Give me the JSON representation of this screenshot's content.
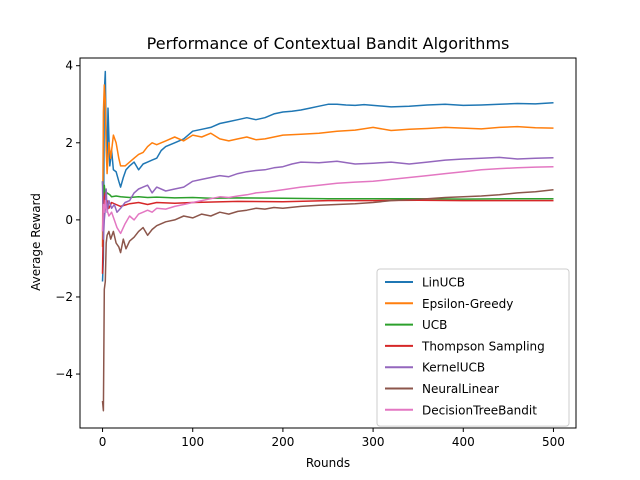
{
  "chart_data": {
    "type": "line",
    "title": "Performance of Contextual Bandit Algorithms",
    "xlabel": "Rounds",
    "ylabel": "Average Reward",
    "xlim": [
      -25,
      525
    ],
    "ylim": [
      -5.4,
      4.2
    ],
    "xticks": [
      0,
      100,
      200,
      300,
      400,
      500
    ],
    "xtick_labels": [
      "0",
      "100",
      "200",
      "300",
      "400",
      "500"
    ],
    "yticks": [
      -4,
      -2,
      0,
      2,
      4
    ],
    "ytick_labels": [
      "−4",
      "−2",
      "0",
      "2",
      "4"
    ],
    "grid": false,
    "legend_position": "lower right",
    "series": [
      {
        "name": "LinUCB",
        "color": "#1f77b4",
        "x": [
          0,
          1,
          2,
          3,
          4,
          5,
          6,
          8,
          10,
          12,
          15,
          18,
          20,
          23,
          26,
          30,
          35,
          40,
          45,
          50,
          55,
          60,
          65,
          70,
          80,
          90,
          100,
          110,
          120,
          130,
          140,
          150,
          160,
          170,
          180,
          190,
          200,
          210,
          220,
          230,
          240,
          250,
          260,
          270,
          280,
          290,
          300,
          320,
          340,
          360,
          380,
          400,
          420,
          440,
          460,
          480,
          500
        ],
        "y": [
          -1.6,
          -1.0,
          3.3,
          3.85,
          2.1,
          1.5,
          2.9,
          1.4,
          1.8,
          1.3,
          1.25,
          1.0,
          0.85,
          1.1,
          1.3,
          1.4,
          1.5,
          1.3,
          1.45,
          1.5,
          1.55,
          1.6,
          1.8,
          1.9,
          2.0,
          2.1,
          2.3,
          2.35,
          2.4,
          2.5,
          2.55,
          2.6,
          2.65,
          2.6,
          2.65,
          2.75,
          2.8,
          2.82,
          2.85,
          2.9,
          2.95,
          3.0,
          3.0,
          2.98,
          2.97,
          2.99,
          2.97,
          2.93,
          2.95,
          2.98,
          3.0,
          2.97,
          2.98,
          3.0,
          3.02,
          3.01,
          3.04
        ]
      },
      {
        "name": "Epsilon-Greedy",
        "color": "#ff7f0e",
        "x": [
          0,
          1,
          2,
          3,
          4,
          5,
          7,
          9,
          12,
          15,
          18,
          20,
          25,
          30,
          35,
          40,
          45,
          50,
          55,
          60,
          70,
          80,
          90,
          100,
          110,
          120,
          130,
          140,
          150,
          160,
          170,
          180,
          190,
          200,
          220,
          240,
          260,
          280,
          300,
          320,
          340,
          360,
          380,
          400,
          420,
          440,
          460,
          480,
          500
        ],
        "y": [
          -0.7,
          2.8,
          3.5,
          3.1,
          1.8,
          1.2,
          2.0,
          1.6,
          2.2,
          2.0,
          1.6,
          1.4,
          1.4,
          1.5,
          1.6,
          1.7,
          1.75,
          1.9,
          2.0,
          1.95,
          2.05,
          2.15,
          2.05,
          2.2,
          2.15,
          2.25,
          2.1,
          2.05,
          2.1,
          2.15,
          2.08,
          2.1,
          2.15,
          2.2,
          2.22,
          2.25,
          2.3,
          2.33,
          2.4,
          2.32,
          2.35,
          2.37,
          2.4,
          2.38,
          2.36,
          2.4,
          2.42,
          2.39,
          2.38
        ]
      },
      {
        "name": "UCB",
        "color": "#2ca02c",
        "x": [
          0,
          1,
          2,
          3,
          5,
          8,
          10,
          15,
          20,
          30,
          40,
          50,
          60,
          80,
          100,
          120,
          150,
          200,
          250,
          300,
          350,
          400,
          450,
          500
        ],
        "y": [
          1.0,
          0.5,
          0.9,
          0.6,
          0.7,
          0.65,
          0.6,
          0.62,
          0.6,
          0.58,
          0.6,
          0.58,
          0.59,
          0.57,
          0.58,
          0.56,
          0.57,
          0.56,
          0.55,
          0.55,
          0.55,
          0.54,
          0.55,
          0.55
        ]
      },
      {
        "name": "Thompson Sampling",
        "color": "#d62728",
        "x": [
          0,
          1,
          2,
          3,
          4,
          5,
          7,
          10,
          15,
          20,
          30,
          40,
          50,
          60,
          80,
          100,
          150,
          200,
          250,
          300,
          350,
          400,
          450,
          500
        ],
        "y": [
          -1.4,
          0.0,
          0.6,
          0.7,
          0.4,
          0.5,
          0.3,
          0.45,
          0.4,
          0.35,
          0.42,
          0.45,
          0.4,
          0.45,
          0.43,
          0.45,
          0.48,
          0.47,
          0.5,
          0.5,
          0.51,
          0.5,
          0.5,
          0.5
        ]
      },
      {
        "name": "KernelUCB",
        "color": "#9467bd",
        "x": [
          0,
          1,
          2,
          3,
          4,
          5,
          7,
          10,
          13,
          16,
          20,
          25,
          30,
          35,
          40,
          45,
          50,
          55,
          60,
          70,
          80,
          90,
          100,
          110,
          120,
          130,
          140,
          150,
          160,
          170,
          180,
          190,
          200,
          210,
          220,
          240,
          260,
          280,
          300,
          320,
          340,
          360,
          380,
          400,
          420,
          440,
          460,
          480,
          500
        ],
        "y": [
          1.0,
          -0.5,
          0.0,
          0.3,
          0.8,
          0.2,
          0.5,
          0.3,
          0.4,
          0.2,
          0.3,
          0.45,
          0.5,
          0.7,
          0.8,
          0.85,
          0.9,
          0.7,
          0.85,
          0.75,
          0.8,
          0.85,
          1.0,
          1.05,
          1.1,
          1.15,
          1.12,
          1.2,
          1.25,
          1.28,
          1.3,
          1.35,
          1.38,
          1.45,
          1.5,
          1.48,
          1.52,
          1.45,
          1.47,
          1.5,
          1.45,
          1.5,
          1.55,
          1.58,
          1.6,
          1.62,
          1.58,
          1.6,
          1.61
        ]
      },
      {
        "name": "NeuralLinear",
        "color": "#8c564b",
        "x": [
          0,
          1,
          2,
          3,
          4,
          5,
          7,
          9,
          12,
          15,
          18,
          20,
          23,
          26,
          30,
          35,
          40,
          45,
          50,
          55,
          60,
          70,
          80,
          90,
          100,
          110,
          120,
          130,
          140,
          150,
          160,
          170,
          180,
          190,
          200,
          220,
          240,
          260,
          280,
          300,
          320,
          340,
          360,
          380,
          400,
          420,
          440,
          460,
          480,
          500
        ],
        "y": [
          -4.7,
          -4.95,
          -1.8,
          -1.6,
          -0.6,
          -0.4,
          -0.3,
          -0.5,
          -0.3,
          -0.6,
          -0.7,
          -0.85,
          -0.5,
          -0.75,
          -0.55,
          -0.45,
          -0.3,
          -0.2,
          -0.4,
          -0.25,
          -0.15,
          -0.05,
          0.0,
          0.1,
          0.05,
          0.15,
          0.1,
          0.2,
          0.15,
          0.22,
          0.25,
          0.3,
          0.28,
          0.32,
          0.3,
          0.35,
          0.38,
          0.4,
          0.42,
          0.45,
          0.5,
          0.52,
          0.55,
          0.58,
          0.6,
          0.62,
          0.65,
          0.7,
          0.73,
          0.78
        ]
      },
      {
        "name": "DecisionTreeBandit",
        "color": "#e377c2",
        "x": [
          0,
          1,
          2,
          3,
          4,
          5,
          7,
          10,
          13,
          16,
          20,
          25,
          30,
          35,
          40,
          45,
          50,
          55,
          60,
          70,
          80,
          90,
          100,
          110,
          120,
          130,
          140,
          150,
          160,
          170,
          180,
          190,
          200,
          220,
          240,
          260,
          280,
          300,
          320,
          340,
          360,
          380,
          400,
          420,
          440,
          460,
          480,
          500
        ],
        "y": [
          -0.3,
          0.4,
          0.2,
          0.5,
          0.3,
          0.25,
          0.1,
          0.2,
          0.0,
          -0.2,
          -0.35,
          -0.1,
          0.1,
          0.0,
          0.15,
          0.2,
          0.25,
          0.2,
          0.3,
          0.28,
          0.35,
          0.4,
          0.45,
          0.5,
          0.55,
          0.6,
          0.58,
          0.62,
          0.65,
          0.7,
          0.72,
          0.75,
          0.78,
          0.85,
          0.9,
          0.95,
          0.98,
          1.0,
          1.05,
          1.1,
          1.15,
          1.2,
          1.25,
          1.3,
          1.33,
          1.35,
          1.37,
          1.38
        ]
      }
    ]
  }
}
